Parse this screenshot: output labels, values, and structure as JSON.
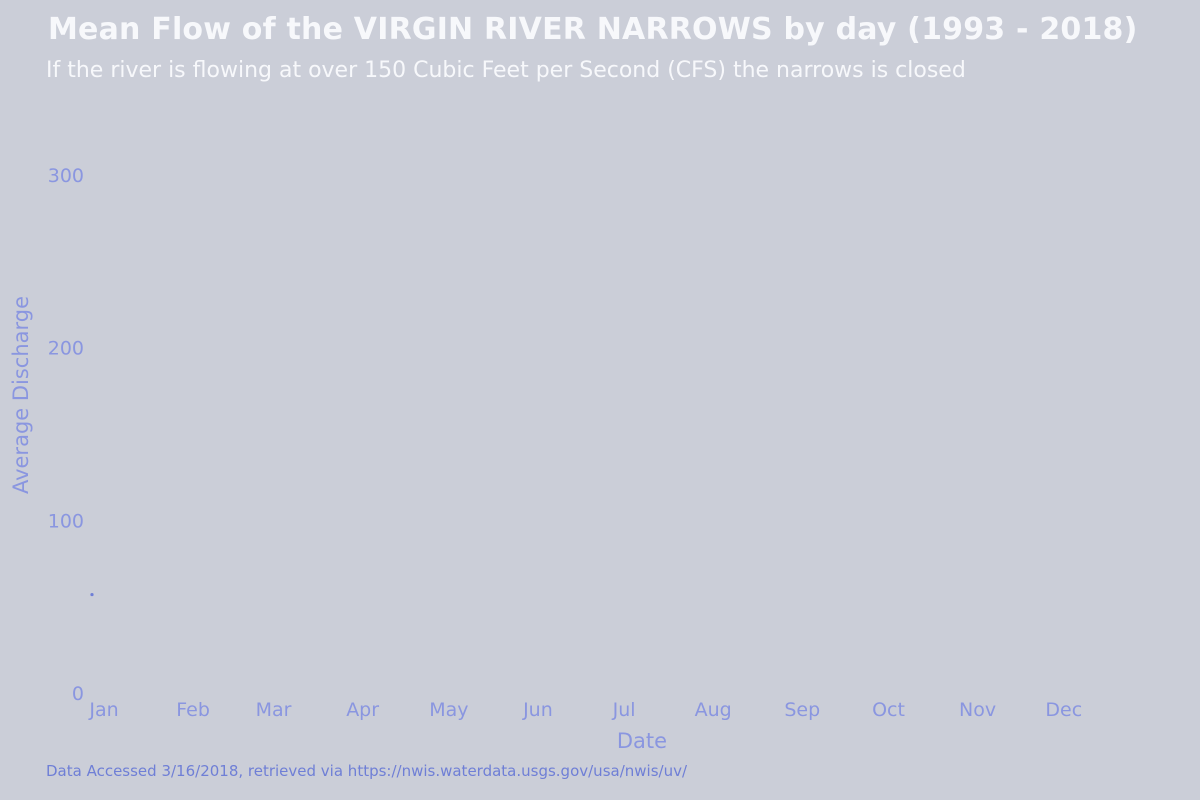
{
  "chart_data": {
    "type": "line",
    "title": "Mean Flow of the VIRGIN RIVER NARROWS by day (1993 - 2018)",
    "subtitle": "If the river is flowing at over 150 Cubic Feet per Second (CFS) the narrows is closed",
    "xlabel": "Date",
    "ylabel": "Average Discharge",
    "caption": "Data Accessed 3/16/2018, retrieved via https://nwis.waterdata.usgs.gov/usa/nwis/uv/",
    "categories": [
      "Jan",
      "Feb",
      "Mar",
      "Apr",
      "May",
      "Jun",
      "Jul",
      "Aug",
      "Sep",
      "Oct",
      "Nov",
      "Dec"
    ],
    "yticks": [
      0,
      100,
      200,
      300
    ],
    "ylim": [
      0,
      300
    ],
    "xlim_days": [
      1,
      365
    ],
    "series": [
      {
        "values": [
          {
            "day": 1,
            "value": 57
          }
        ]
      }
    ],
    "grid": false,
    "colors": {
      "background": "#cbced8",
      "text": "#8a96e0",
      "title": "#f7f8fb",
      "point": "#6f7fd6"
    }
  }
}
